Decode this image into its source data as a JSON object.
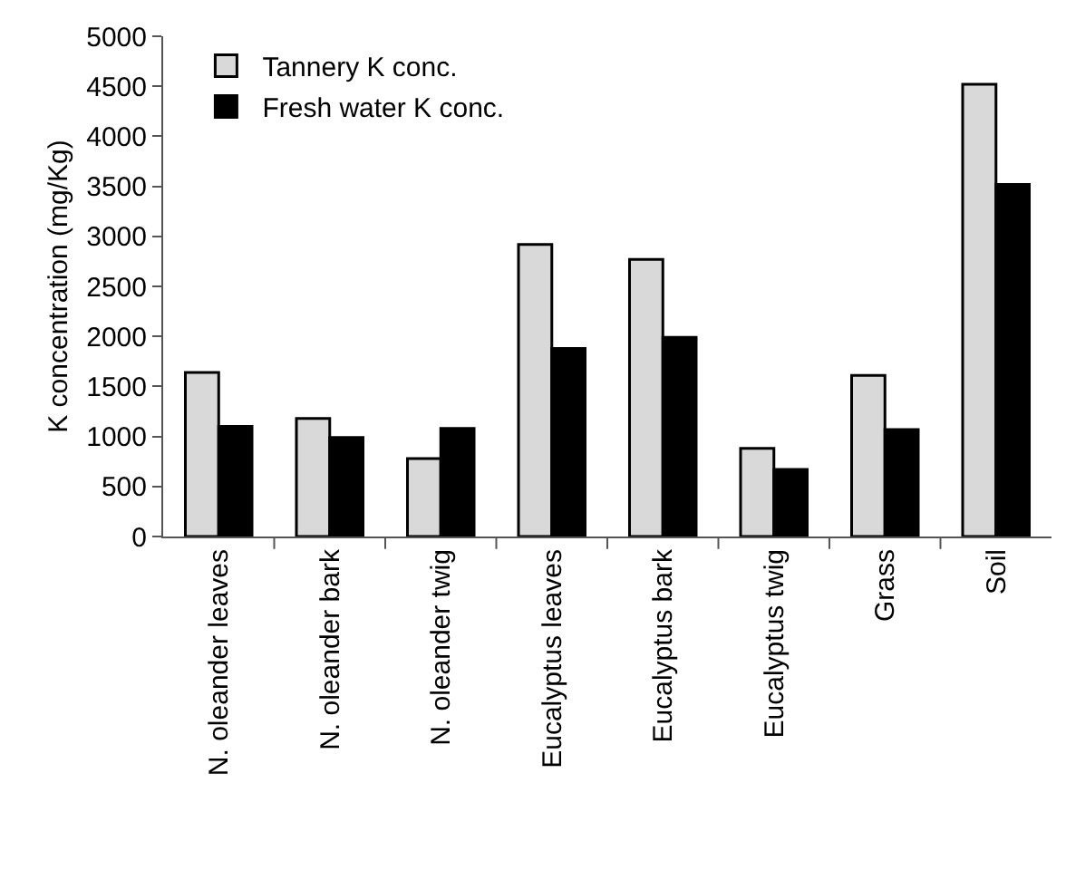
{
  "chart_data": {
    "type": "bar",
    "ylabel": "K concentration (mg/Kg)",
    "categories": [
      "N. oleander leaves",
      "N. oleander bark",
      "N. oleander twig",
      "Eucalyptus leaves",
      "Eucalyptus bark",
      "Eucalyptus twig",
      "Grass",
      "Soil"
    ],
    "series": [
      {
        "name": "Tannery K conc.",
        "color": "#d9d9d9",
        "values": [
          1640,
          1180,
          780,
          2920,
          2770,
          880,
          1610,
          4520
        ]
      },
      {
        "name": "Fresh water K conc.",
        "color": "#000000",
        "values": [
          1100,
          990,
          1080,
          1880,
          1990,
          670,
          1070,
          3520
        ]
      }
    ],
    "ylim": [
      0,
      5000
    ],
    "yticks": [
      0,
      500,
      1000,
      1500,
      2000,
      2500,
      3000,
      3500,
      4000,
      4500,
      5000
    ],
    "grid": false,
    "legend": "top left"
  }
}
